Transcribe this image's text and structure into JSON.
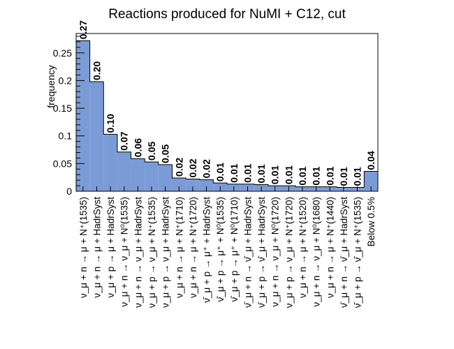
{
  "chart_data": {
    "type": "bar",
    "title": "Reactions produced for NuMI + C12, cut",
    "xlabel": "",
    "ylabel": "frequency",
    "ylim": [
      0,
      0.285
    ],
    "yticks": [
      "0",
      "0.05",
      "0.1",
      "0.15",
      "0.2",
      "0.25"
    ],
    "grid": false,
    "legend": "none",
    "bar_color": "#7b9bd6",
    "categories": [
      "ν_μ + n → μ + N⁺(1535)",
      "ν_μ + n → μ + HadrSyst",
      "ν_μ + p → μ + HadrSyst",
      "ν_μ + n → ν_μ + N⁰(1535)",
      "ν_μ + n → ν_μ + HadrSyst",
      "ν_μ + p → ν_μ + N⁺(1535)",
      "ν_μ + p → ν_μ + HadrSyst",
      "ν_μ + n → μ + N⁺(1710)",
      "ν_μ + n → μ + N⁺(1720)",
      "ν̄_μ + p → μ⁺ + HadrSyst",
      "ν̄_μ + p → μ⁺ + N⁰(1535)",
      "ν̄_μ + p → μ⁺ + N⁰(1710)",
      "ν̄_μ + n → ν̄_μ + HadrSyst",
      "ν̄_μ + p → ν̄_μ + HadrSyst",
      "ν_μ + n → ν_μ + N⁰(1720)",
      "ν_μ + p → ν_μ + N⁺(1720)",
      "ν_μ + n → μ + N⁺(1520)",
      "ν_μ + n → ν_μ + N⁰(1680)",
      "ν_μ + n → μ + N⁺(1440)",
      "ν̄_μ + n → ν̄_μ + HadrSyst",
      "ν̄_μ + p → ν̄_μ + N⁺(1535)",
      "Below 0.5%"
    ],
    "values": [
      0.272,
      0.198,
      0.103,
      0.071,
      0.059,
      0.053,
      0.048,
      0.024,
      0.022,
      0.021,
      0.015,
      0.013,
      0.013,
      0.012,
      0.01,
      0.01,
      0.008,
      0.008,
      0.008,
      0.007,
      0.007,
      0.036
    ],
    "data_labels": [
      "0.27",
      "0.20",
      "0.10",
      "0.07",
      "0.06",
      "0.05",
      "0.05",
      "0.02",
      "0.02",
      "0.02",
      "0.01",
      "0.01",
      "0.01",
      "0.01",
      "0.01",
      "0.01",
      "0.01",
      "0.01",
      "0.01",
      "0.01",
      "0.01",
      "0.04"
    ]
  }
}
